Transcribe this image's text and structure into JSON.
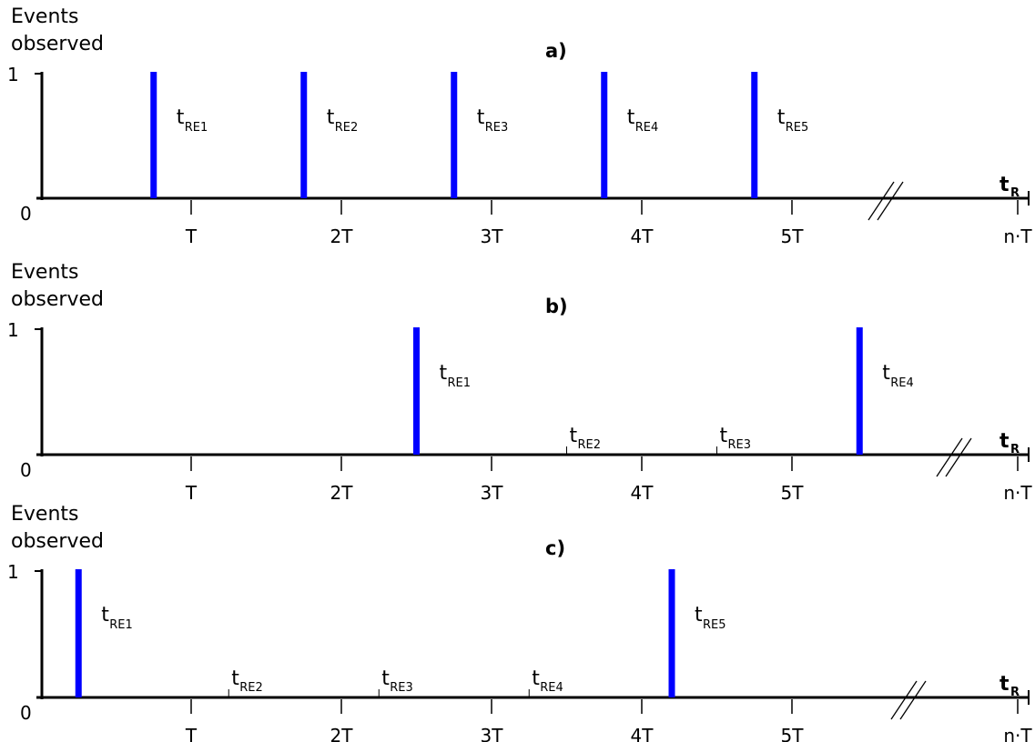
{
  "colors": {
    "event": "#0000ff",
    "axis": "#000000"
  },
  "x_ticks": [
    "T",
    "2T",
    "3T",
    "4T",
    "5T",
    "n·T"
  ],
  "y_label": [
    "Events",
    "observed"
  ],
  "y_ticks": [
    "0",
    "1"
  ],
  "x_axis_name": {
    "main": "t",
    "sub": "R"
  },
  "panels": [
    {
      "title": "a)",
      "events": [
        {
          "name": "t",
          "sub": "RE1",
          "x": 0.75,
          "observed": 1
        },
        {
          "name": "t",
          "sub": "RE2",
          "x": 1.75,
          "observed": 1
        },
        {
          "name": "t",
          "sub": "RE3",
          "x": 2.75,
          "observed": 1
        },
        {
          "name": "t",
          "sub": "RE4",
          "x": 3.75,
          "observed": 1
        },
        {
          "name": "t",
          "sub": "RE5",
          "x": 4.75,
          "observed": 1
        }
      ]
    },
    {
      "title": "b)",
      "events": [
        {
          "name": "t",
          "sub": "RE1",
          "x": 2.5,
          "observed": 1
        },
        {
          "name": "t",
          "sub": "RE2",
          "x": 3.5,
          "observed": 0
        },
        {
          "name": "t",
          "sub": "RE3",
          "x": 4.5,
          "observed": 0
        },
        {
          "name": "t",
          "sub": "RE4",
          "x": 5.45,
          "observed": 1
        }
      ]
    },
    {
      "title": "c)",
      "events": [
        {
          "name": "t",
          "sub": "RE1",
          "x": 0.25,
          "observed": 1
        },
        {
          "name": "t",
          "sub": "RE2",
          "x": 1.25,
          "observed": 0
        },
        {
          "name": "t",
          "sub": "RE3",
          "x": 2.25,
          "observed": 0
        },
        {
          "name": "t",
          "sub": "RE4",
          "x": 3.25,
          "observed": 0
        },
        {
          "name": "t",
          "sub": "RE5",
          "x": 4.2,
          "observed": 1
        }
      ]
    }
  ]
}
